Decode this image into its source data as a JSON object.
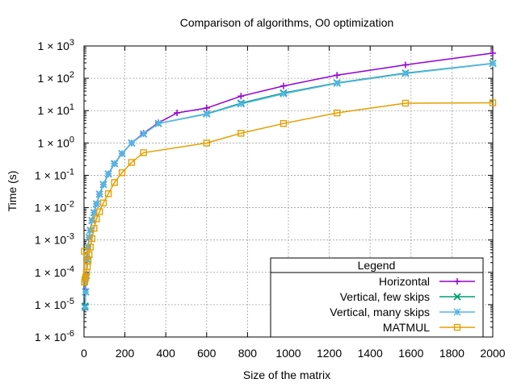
{
  "chart_data": {
    "type": "line",
    "title": "Comparison of algorithms, O0 optimization",
    "xlabel": "Size of the matrix",
    "ylabel": "Time (s)",
    "xlim": [
      0,
      2000
    ],
    "ylim": [
      1e-06,
      1000
    ],
    "yscale": "log",
    "grid": true,
    "x_ticks": [
      0,
      200,
      400,
      600,
      800,
      1000,
      1200,
      1400,
      1600,
      1800,
      2000
    ],
    "y_ticks": [
      {
        "value": 1e-06,
        "exp": "-6"
      },
      {
        "value": 1e-05,
        "exp": "-5"
      },
      {
        "value": 0.0001,
        "exp": "-4"
      },
      {
        "value": 0.001,
        "exp": "-3"
      },
      {
        "value": 0.01,
        "exp": "-2"
      },
      {
        "value": 0.1,
        "exp": "-1"
      },
      {
        "value": 1,
        "exp": "0"
      },
      {
        "value": 10,
        "exp": "1"
      },
      {
        "value": 100,
        "exp": "2"
      },
      {
        "value": 1000,
        "exp": "3"
      }
    ],
    "legend": {
      "title": "Legend",
      "position": "bottom-right"
    },
    "series": [
      {
        "name": "Horizontal",
        "color": "#9400d3",
        "marker": "plus",
        "points": [
          [
            5,
            1e-05
          ],
          [
            8,
            3e-05
          ],
          [
            12,
            9e-05
          ],
          [
            16,
            0.0003
          ],
          [
            20,
            0.0006
          ],
          [
            25,
            0.0012
          ],
          [
            31,
            0.002
          ],
          [
            39,
            0.004
          ],
          [
            49,
            0.007
          ],
          [
            61,
            0.013
          ],
          [
            76,
            0.026
          ],
          [
            95,
            0.052
          ],
          [
            119,
            0.11
          ],
          [
            149,
            0.23
          ],
          [
            186,
            0.47
          ],
          [
            233,
            1.0
          ],
          [
            291,
            2.0
          ],
          [
            364,
            4.2
          ],
          [
            455,
            8.5
          ],
          [
            600,
            12
          ],
          [
            768,
            28
          ],
          [
            976,
            58
          ],
          [
            1238,
            125
          ],
          [
            1573,
            260
          ],
          [
            2000,
            600
          ]
        ]
      },
      {
        "name": "Vertical, few skips",
        "color": "#009e73",
        "marker": "x",
        "points": [
          [
            5,
            9e-06
          ],
          [
            8,
            2.5e-05
          ],
          [
            12,
            8e-05
          ],
          [
            16,
            0.00025
          ],
          [
            20,
            0.0006
          ],
          [
            25,
            0.0012
          ],
          [
            31,
            0.002
          ],
          [
            39,
            0.004
          ],
          [
            49,
            0.007
          ],
          [
            61,
            0.013
          ],
          [
            76,
            0.026
          ],
          [
            95,
            0.052
          ],
          [
            119,
            0.11
          ],
          [
            149,
            0.23
          ],
          [
            186,
            0.47
          ],
          [
            233,
            1.0
          ],
          [
            291,
            1.9
          ],
          [
            364,
            4.0
          ],
          [
            600,
            8
          ],
          [
            768,
            17
          ],
          [
            976,
            35
          ],
          [
            1238,
            72
          ],
          [
            1573,
            145
          ],
          [
            2000,
            290
          ]
        ]
      },
      {
        "name": "Vertical, many skips",
        "color": "#56b4e9",
        "marker": "star",
        "points": [
          [
            5,
            8e-06
          ],
          [
            8,
            2.5e-05
          ],
          [
            12,
            8e-05
          ],
          [
            16,
            0.00025
          ],
          [
            20,
            0.0006
          ],
          [
            25,
            0.0012
          ],
          [
            31,
            0.002
          ],
          [
            39,
            0.004
          ],
          [
            49,
            0.007
          ],
          [
            61,
            0.013
          ],
          [
            76,
            0.026
          ],
          [
            95,
            0.052
          ],
          [
            119,
            0.11
          ],
          [
            149,
            0.23
          ],
          [
            186,
            0.47
          ],
          [
            233,
            1.0
          ],
          [
            291,
            1.9
          ],
          [
            364,
            4.0
          ],
          [
            600,
            7.8
          ],
          [
            768,
            16
          ],
          [
            976,
            33
          ],
          [
            1238,
            70
          ],
          [
            1573,
            140
          ],
          [
            2000,
            285
          ]
        ]
      },
      {
        "name": "MATMUL",
        "color": "#e69f00",
        "marker": "square",
        "points": [
          [
            2,
            0.00045
          ],
          [
            3,
            5e-05
          ],
          [
            5,
            6e-05
          ],
          [
            8,
            7e-05
          ],
          [
            12,
            0.0001
          ],
          [
            16,
            0.00015
          ],
          [
            20,
            0.00022
          ],
          [
            25,
            0.00035
          ],
          [
            31,
            0.0006
          ],
          [
            39,
            0.0011
          ],
          [
            49,
            0.0023
          ],
          [
            61,
            0.0045
          ],
          [
            76,
            0.0075
          ],
          [
            95,
            0.014
          ],
          [
            119,
            0.027
          ],
          [
            149,
            0.06
          ],
          [
            186,
            0.12
          ],
          [
            233,
            0.25
          ],
          [
            291,
            0.5
          ],
          [
            600,
            1.0
          ],
          [
            768,
            2.0
          ],
          [
            976,
            4.0
          ],
          [
            1238,
            8.5
          ],
          [
            1573,
            17
          ],
          [
            2000,
            17.5
          ]
        ]
      }
    ]
  }
}
